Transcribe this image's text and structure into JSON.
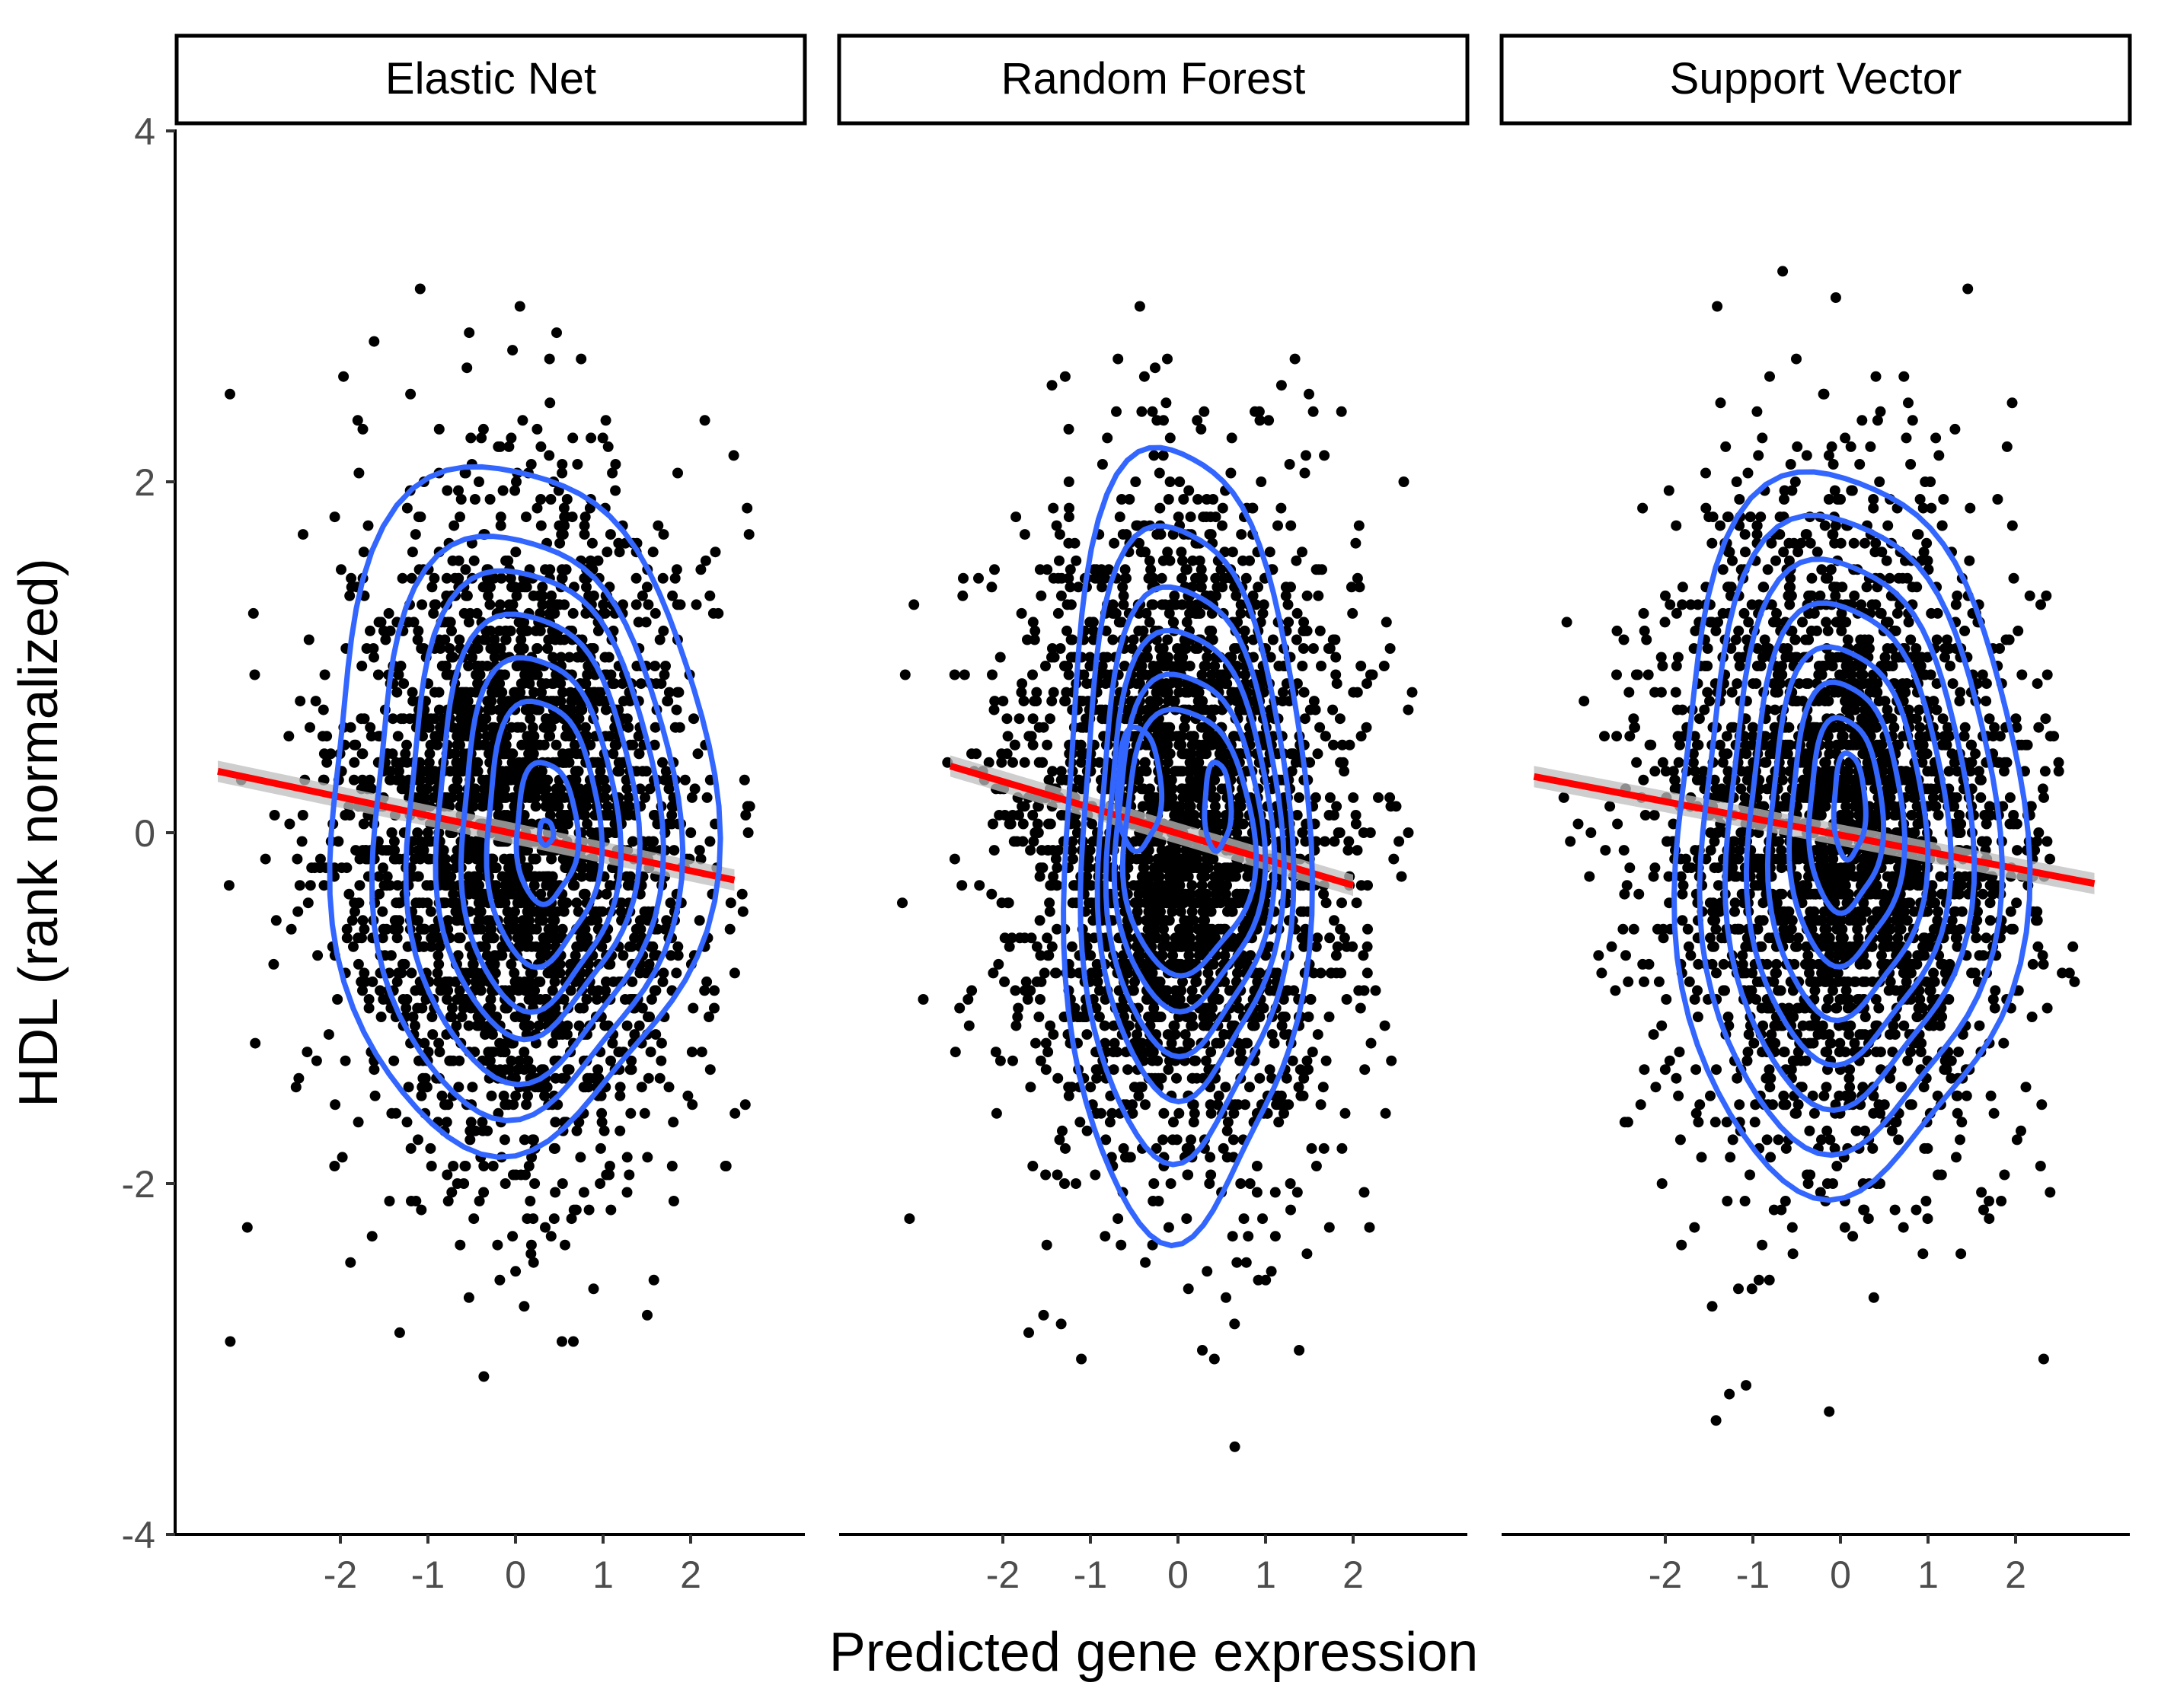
{
  "chart_data": {
    "type": "scatter",
    "facets": [
      {
        "name": "Elastic Net",
        "fit_line": {
          "x": [
            -3.4,
            2.5
          ],
          "y": [
            0.35,
            -0.27
          ]
        },
        "contours": [
          {
            "cx": 0.0,
            "cy": 0.15,
            "rx": 2.2,
            "ry": 1.95
          },
          {
            "cx": 0.05,
            "cy": 0.05,
            "rx": 1.75,
            "ry": 1.65
          },
          {
            "cx": 0.15,
            "cy": 0.05,
            "rx": 1.45,
            "ry": 1.45
          },
          {
            "cx": 0.2,
            "cy": 0.05,
            "rx": 1.15,
            "ry": 1.2
          },
          {
            "cx": 0.25,
            "cy": 0.0,
            "rx": 0.9,
            "ry": 1.0
          },
          {
            "cx": 0.3,
            "cy": 0.0,
            "rx": 0.65,
            "ry": 0.75
          },
          {
            "cx": 0.35,
            "cy": 0.0,
            "rx": 0.35,
            "ry": 0.4
          },
          {
            "cx": 0.35,
            "cy": 0.0,
            "rx": 0.08,
            "ry": 0.07
          }
        ]
      },
      {
        "name": "Random Forest",
        "fit_line": {
          "x": [
            -2.6,
            2.0
          ],
          "y": [
            0.38,
            -0.3
          ]
        },
        "contours": [
          {
            "cx": 0.05,
            "cy": -0.05,
            "rx": 1.4,
            "ry": 2.25
          },
          {
            "cx": 0.05,
            "cy": -0.05,
            "rx": 1.2,
            "ry": 1.8
          },
          {
            "cx": 0.1,
            "cy": -0.05,
            "rx": 1.05,
            "ry": 1.45
          },
          {
            "cx": 0.1,
            "cy": -0.05,
            "rx": 0.95,
            "ry": 1.2
          },
          {
            "cx": 0.1,
            "cy": -0.05,
            "rx": 0.85,
            "ry": 0.95
          },
          {
            "cx": 0.1,
            "cy": -0.05,
            "rx": 0.75,
            "ry": 0.75
          },
          {
            "cx": -0.45,
            "cy": 0.25,
            "rx": 0.25,
            "ry": 0.35
          },
          {
            "cx": 0.45,
            "cy": 0.15,
            "rx": 0.15,
            "ry": 0.25
          }
        ]
      },
      {
        "name": "Support Vector",
        "fit_line": {
          "x": [
            -3.5,
            2.9
          ],
          "y": [
            0.32,
            -0.29
          ]
        },
        "contours": [
          {
            "cx": 0.05,
            "cy": 0.0,
            "rx": 2.0,
            "ry": 2.05
          },
          {
            "cx": 0.05,
            "cy": 0.0,
            "rx": 1.7,
            "ry": 1.8
          },
          {
            "cx": 0.05,
            "cy": 0.0,
            "rx": 1.4,
            "ry": 1.55
          },
          {
            "cx": 0.05,
            "cy": 0.0,
            "rx": 1.15,
            "ry": 1.3
          },
          {
            "cx": 0.05,
            "cy": 0.0,
            "rx": 0.9,
            "ry": 1.05
          },
          {
            "cx": 0.05,
            "cy": 0.05,
            "rx": 0.65,
            "ry": 0.8
          },
          {
            "cx": 0.05,
            "cy": 0.1,
            "rx": 0.42,
            "ry": 0.55
          },
          {
            "cx": 0.1,
            "cy": 0.15,
            "rx": 0.18,
            "ry": 0.3
          }
        ]
      }
    ],
    "xlabel": "Predicted gene expression",
    "ylabel": "HDL (rank normalized)",
    "xlim": [
      -3.9,
      3.3
    ],
    "ylim": [
      -4.0,
      4.0
    ],
    "x_ticks": [
      "-2",
      "-1",
      "0",
      "1",
      "2"
    ],
    "y_ticks": [
      "4",
      "2",
      "0",
      "-2",
      "-4"
    ],
    "grid": false,
    "colors": {
      "points": "#000000",
      "contour": "#3366FF",
      "fit": "#FF0000",
      "band": "#BEBEBE"
    }
  }
}
